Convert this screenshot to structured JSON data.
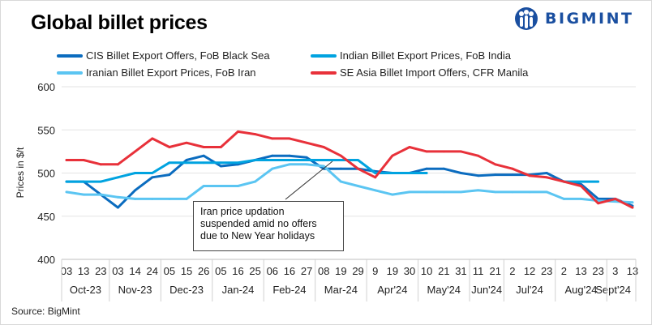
{
  "header": {
    "title": "Global billet prices",
    "logo_text": "BIGMINT",
    "logo_color": "#1a4fa0"
  },
  "source": "Source: BigMint",
  "annotation": {
    "lines": [
      "Iran price updation",
      "suspended  amid no offers",
      "due to New Year holidays"
    ]
  },
  "chart_data": {
    "type": "line",
    "title": "Global billet prices",
    "ylabel": "Prices in $/t",
    "xlabel": "",
    "ylim": [
      400,
      600
    ],
    "yticks": [
      400,
      450,
      500,
      550,
      600
    ],
    "grid": true,
    "legend_placement": "top",
    "categories": [
      "03",
      "13",
      "23",
      "03",
      "14",
      "24",
      "05",
      "15",
      "26",
      "05",
      "16",
      "25",
      "06",
      "16",
      "27",
      "08",
      "19",
      "29",
      "9",
      "19",
      "30",
      "10",
      "21",
      "31",
      "11",
      "21",
      "2",
      "12",
      "23",
      "2",
      "13",
      "23",
      "3",
      "13"
    ],
    "months": [
      {
        "label": "Oct-23",
        "start": 0,
        "end": 2
      },
      {
        "label": "Nov-23",
        "start": 3,
        "end": 5
      },
      {
        "label": "Dec-23",
        "start": 6,
        "end": 8
      },
      {
        "label": "Jan-24",
        "start": 9,
        "end": 11
      },
      {
        "label": "Feb-24",
        "start": 12,
        "end": 14
      },
      {
        "label": "Mar-24",
        "start": 15,
        "end": 17
      },
      {
        "label": "Apr'24",
        "start": 18,
        "end": 20
      },
      {
        "label": "May'24",
        "start": 21,
        "end": 23
      },
      {
        "label": "Jun'24",
        "start": 24,
        "end": 25
      },
      {
        "label": "Jul'24",
        "start": 26,
        "end": 28
      },
      {
        "label": "Aug'24",
        "start": 29,
        "end": 31
      },
      {
        "label": "Sept'24",
        "start": 32,
        "end": 33
      }
    ],
    "series": [
      {
        "name": "CIS Billet Export Offers, FoB Black Sea",
        "color": "#0b6cbf",
        "values": [
          490,
          490,
          475,
          460,
          480,
          495,
          498,
          515,
          520,
          508,
          510,
          515,
          520,
          520,
          518,
          505,
          505,
          505,
          502,
          500,
          500,
          505,
          505,
          500,
          497,
          498,
          498,
          498,
          500,
          490,
          487,
          470,
          470,
          462
        ]
      },
      {
        "name": "Indian Billet Export Prices, FoB India",
        "color": "#00a3e0",
        "values": [
          490,
          490,
          490,
          495,
          500,
          500,
          512,
          512,
          512,
          512,
          512,
          515,
          515,
          515,
          515,
          515,
          515,
          515,
          500,
          500,
          500,
          500,
          null,
          null,
          null,
          null,
          null,
          null,
          null,
          490,
          490,
          490,
          null,
          null
        ]
      },
      {
        "name": "Iranian Billet Export Prices, FoB Iran",
        "color": "#5bc5f2",
        "values": [
          478,
          475,
          475,
          472,
          470,
          470,
          470,
          470,
          485,
          485,
          485,
          490,
          505,
          510,
          510,
          508,
          490,
          485,
          480,
          475,
          478,
          478,
          478,
          478,
          480,
          478,
          478,
          478,
          478,
          470,
          470,
          468,
          467,
          466
        ]
      },
      {
        "name": "SE Asia Billet Import Offers, CFR Manila",
        "color": "#e8313a",
        "values": [
          515,
          515,
          510,
          510,
          525,
          540,
          530,
          535,
          530,
          530,
          548,
          545,
          540,
          540,
          535,
          530,
          520,
          505,
          495,
          520,
          530,
          525,
          525,
          525,
          520,
          510,
          505,
          497,
          495,
          490,
          485,
          465,
          470,
          460
        ]
      }
    ]
  }
}
